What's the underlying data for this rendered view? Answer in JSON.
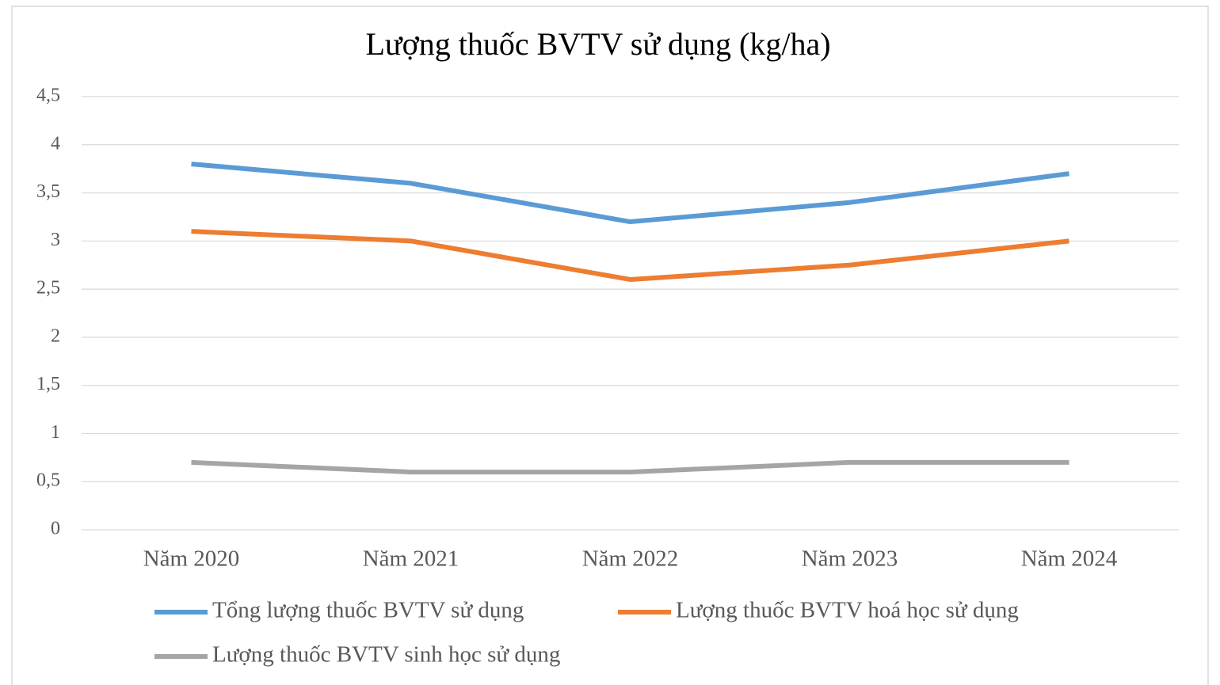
{
  "chart_data": {
    "type": "line",
    "title": "Lượng thuốc BVTV sử dụng (kg/ha)",
    "categories": [
      "Năm 2020",
      "Năm 2021",
      "Năm 2022",
      "Năm 2023",
      "Năm 2024"
    ],
    "series": [
      {
        "name": "Tổng lượng thuốc BVTV sử dụng",
        "color": "#5b9bd5",
        "values": [
          3.8,
          3.6,
          3.2,
          3.4,
          3.7
        ]
      },
      {
        "name": "Lượng thuốc BVTV hoá học sử dụng",
        "color": "#ed7d31",
        "values": [
          3.1,
          3.0,
          2.6,
          2.75,
          3.0
        ]
      },
      {
        "name": "Lượng thuốc BVTV sinh học sử dụng",
        "color": "#a5a5a5",
        "values": [
          0.7,
          0.6,
          0.6,
          0.7,
          0.7
        ]
      }
    ],
    "ylim": [
      0,
      4.5
    ],
    "yticks": [
      0,
      {
        "value": 0.5,
        "label": "0,5"
      },
      1,
      {
        "value": 1.5,
        "label": "1,5"
      },
      2,
      {
        "value": 2.5,
        "label": "2,5"
      },
      3,
      {
        "value": 3.5,
        "label": "3,5"
      },
      4,
      {
        "value": 4.5,
        "label": "4,5"
      }
    ],
    "grid": true,
    "legend": "bottom"
  }
}
